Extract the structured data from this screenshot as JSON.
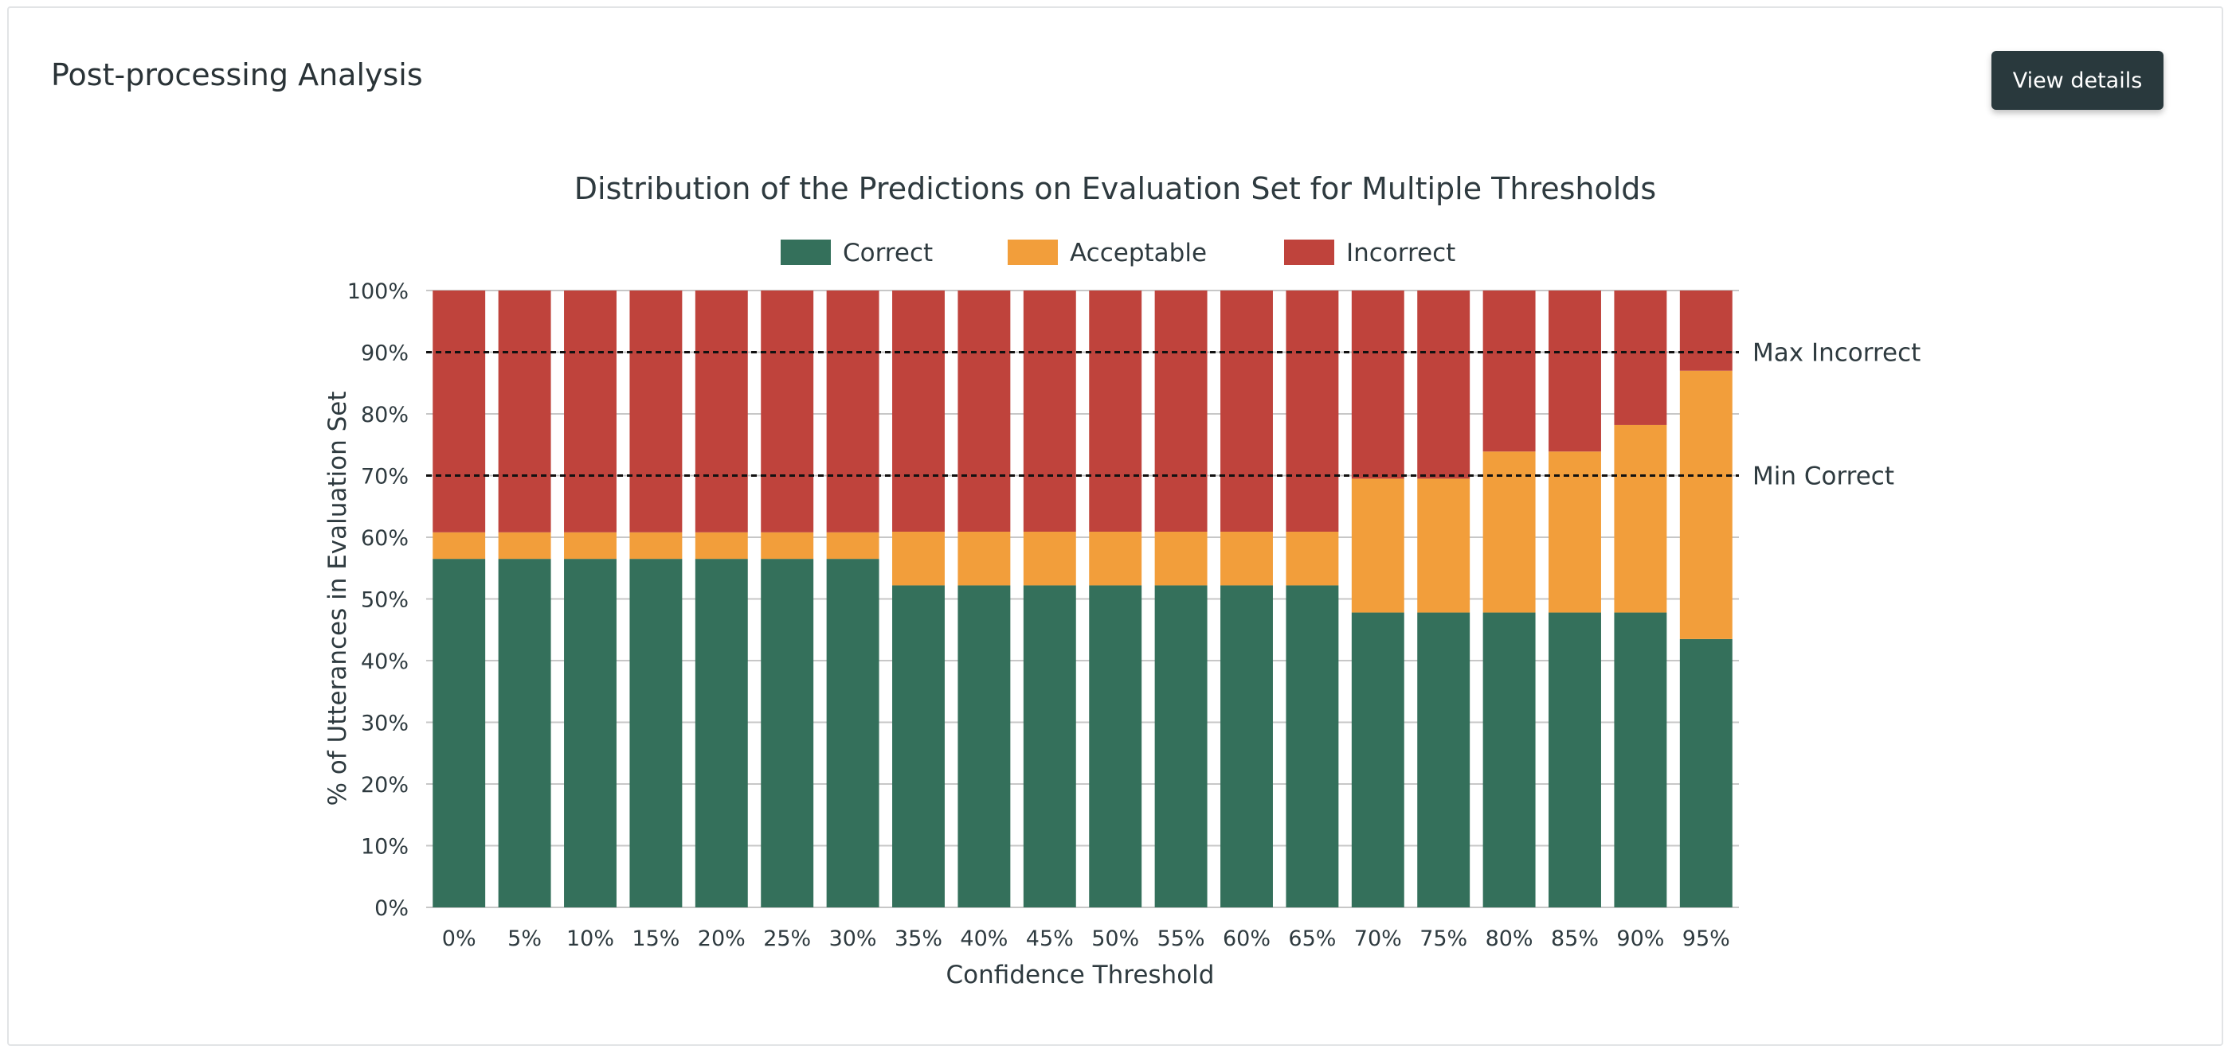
{
  "header": {
    "title": "Post-processing Analysis",
    "details_button": "View details"
  },
  "colors": {
    "correct": "#34705b",
    "acceptable": "#f29e3b",
    "incorrect": "#bf433c",
    "grid": "#c7c7c7",
    "button_bg": "#29393d"
  },
  "chart_data": {
    "type": "bar",
    "stacked": true,
    "title": "Distribution of the Predictions on Evaluation Set for Multiple Thresholds",
    "xlabel": "Confidence Threshold",
    "ylabel": "% of Utterances in Evaluation Set",
    "ylim": [
      0,
      100
    ],
    "yticks": [
      0,
      10,
      20,
      30,
      40,
      50,
      60,
      70,
      80,
      90,
      100
    ],
    "ytick_labels": [
      "0%",
      "10%",
      "20%",
      "30%",
      "40%",
      "50%",
      "60%",
      "70%",
      "80%",
      "90%",
      "100%"
    ],
    "grid": true,
    "legend": "top",
    "categories": [
      "0%",
      "5%",
      "10%",
      "15%",
      "20%",
      "25%",
      "30%",
      "35%",
      "40%",
      "45%",
      "50%",
      "55%",
      "60%",
      "65%",
      "70%",
      "75%",
      "80%",
      "85%",
      "90%",
      "95%"
    ],
    "series": [
      {
        "name": "Correct",
        "values": [
          56.5,
          56.5,
          56.5,
          56.5,
          56.5,
          56.5,
          56.5,
          52.2,
          52.2,
          52.2,
          52.2,
          52.2,
          52.2,
          52.2,
          47.8,
          47.8,
          47.8,
          47.8,
          47.8,
          43.5
        ]
      },
      {
        "name": "Acceptable",
        "values": [
          4.3,
          4.3,
          4.3,
          4.3,
          4.3,
          4.3,
          4.3,
          8.7,
          8.7,
          8.7,
          8.7,
          8.7,
          8.7,
          8.7,
          21.7,
          21.7,
          26.1,
          26.1,
          30.4,
          43.5
        ]
      },
      {
        "name": "Incorrect",
        "values": [
          39.2,
          39.2,
          39.2,
          39.2,
          39.2,
          39.2,
          39.2,
          39.1,
          39.1,
          39.1,
          39.1,
          39.1,
          39.1,
          39.1,
          30.5,
          30.5,
          26.1,
          26.1,
          21.8,
          13.0
        ]
      }
    ],
    "reference_lines": [
      {
        "label": "Max Incorrect",
        "value": 90
      },
      {
        "label": "Min Correct",
        "value": 70
      }
    ]
  }
}
